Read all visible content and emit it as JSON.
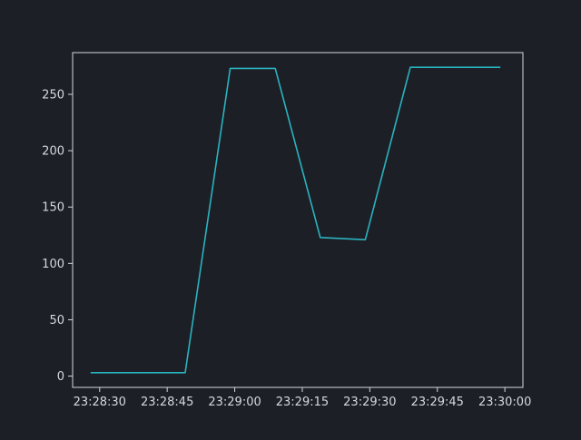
{
  "chart_data": {
    "type": "line",
    "title": "",
    "xlabel": "",
    "ylabel": "",
    "x": [
      "23:28:28",
      "23:28:49",
      "23:28:59",
      "23:29:09",
      "23:29:19",
      "23:29:29",
      "23:29:39",
      "23:29:59"
    ],
    "series": [
      {
        "values": [
          3,
          3,
          273,
          273,
          123,
          121,
          274,
          274
        ]
      }
    ],
    "x_ticks": [
      "23:28:30",
      "23:28:45",
      "23:29:00",
      "23:29:15",
      "23:29:30",
      "23:29:45",
      "23:30:00"
    ],
    "y_ticks": [
      0,
      50,
      100,
      150,
      200,
      250
    ],
    "xlim": [
      "23:28:24",
      "23:30:04"
    ],
    "ylim": [
      -10,
      287
    ],
    "grid": false,
    "colors": {
      "background": "#1c1f26",
      "axes": "#d6d8dc",
      "line": "#2ab3c0"
    }
  }
}
